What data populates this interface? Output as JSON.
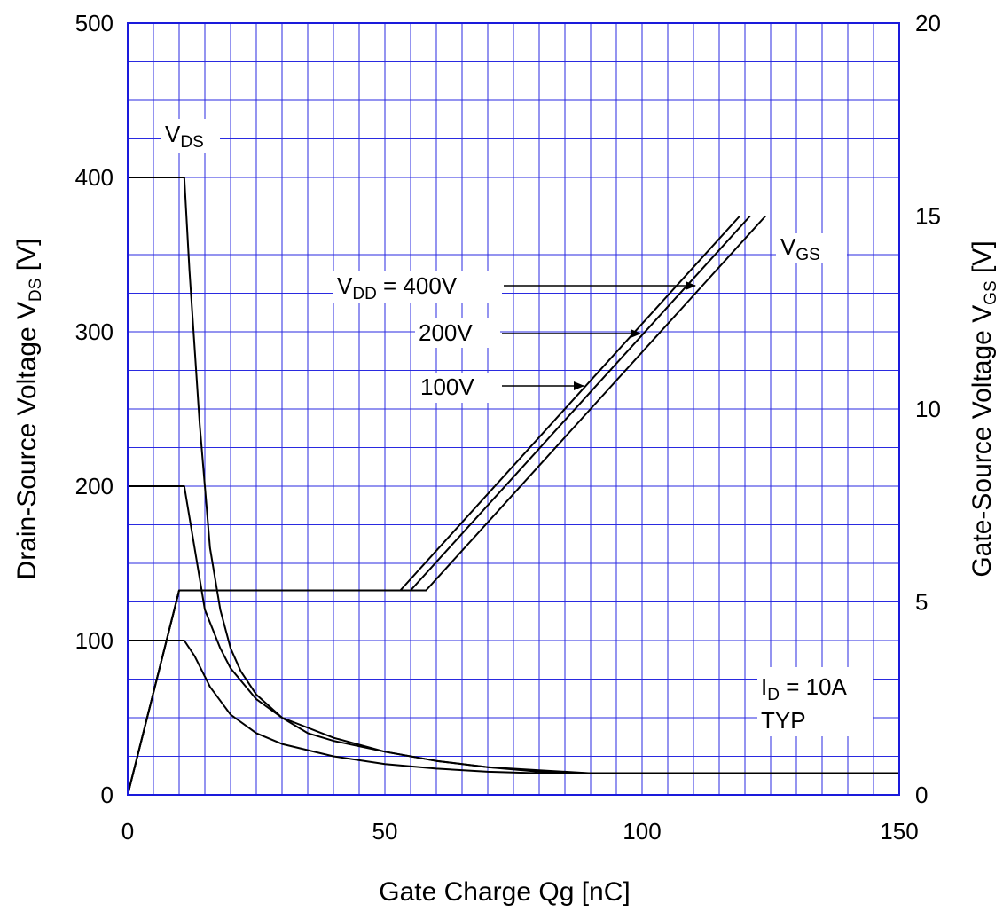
{
  "chart_data": {
    "type": "line",
    "xlabel": "Gate Charge  Qg  [nC]",
    "ylabel_left": {
      "main": "Drain-Source Voltage  V",
      "sub": "DS",
      "unit": " [V]"
    },
    "ylabel_right": {
      "main": "Gate-Source Voltage  V",
      "sub": "GS",
      "unit": " [V]"
    },
    "xlim": [
      0,
      150
    ],
    "ylim_left": [
      0,
      500
    ],
    "ylim_right": [
      0,
      20
    ],
    "grid": true,
    "x_ticks": [
      0,
      50,
      100,
      150
    ],
    "x_tick_labels": [
      "0",
      "50",
      "100",
      "150"
    ],
    "y_left_ticks": [
      0,
      100,
      200,
      300,
      400,
      500
    ],
    "y_left_tick_labels": [
      "0",
      "100",
      "200",
      "300",
      "400",
      "500"
    ],
    "y_right_ticks": [
      0,
      5,
      10,
      15,
      20
    ],
    "y_right_tick_labels": [
      "0",
      "5",
      "10",
      "15",
      "20"
    ],
    "series": [
      {
        "axis": "left",
        "x": [
          0,
          11,
          12,
          14,
          16,
          18,
          20,
          22,
          25,
          30,
          35,
          40,
          50,
          60,
          70,
          80,
          90,
          100,
          150
        ],
        "y": [
          400,
          400,
          340,
          240,
          160,
          120,
          95,
          80,
          65,
          50,
          40,
          35,
          28,
          22,
          18,
          16,
          14,
          14,
          14
        ]
      },
      {
        "axis": "left",
        "x": [
          0,
          11,
          12,
          13,
          15,
          18,
          20,
          25,
          30,
          40,
          50,
          60,
          70,
          80,
          90,
          150
        ],
        "y": [
          200,
          200,
          180,
          160,
          120,
          95,
          82,
          62,
          50,
          37,
          28,
          22,
          18,
          15,
          14,
          14
        ]
      },
      {
        "axis": "left",
        "x": [
          0,
          11,
          13,
          16,
          20,
          25,
          30,
          40,
          50,
          60,
          70,
          80,
          90,
          150
        ],
        "y": [
          100,
          100,
          90,
          70,
          52,
          40,
          33,
          25,
          20,
          17,
          15,
          14,
          14,
          14
        ]
      },
      {
        "axis": "right",
        "x": [
          0,
          10,
          53,
          119
        ],
        "y": [
          0,
          5.3,
          5.3,
          15
        ]
      },
      {
        "axis": "right",
        "x": [
          0,
          10,
          55,
          121
        ],
        "y": [
          0,
          5.3,
          5.3,
          15
        ]
      },
      {
        "axis": "right",
        "x": [
          0,
          10,
          58,
          124
        ],
        "y": [
          0,
          5.3,
          5.3,
          15
        ]
      }
    ],
    "annotations": {
      "vds": {
        "main": "V",
        "sub": "DS"
      },
      "vgs": {
        "main": "V",
        "sub": "GS"
      },
      "vdd400": {
        "pre": "V",
        "sub": "DD",
        "post": " = 400V"
      },
      "vdd200": {
        "text": "200V"
      },
      "vdd100": {
        "text": "100V"
      },
      "id": {
        "main": "I",
        "sub": "D",
        "post": " = 10A"
      },
      "typ": {
        "text": "TYP"
      }
    }
  }
}
